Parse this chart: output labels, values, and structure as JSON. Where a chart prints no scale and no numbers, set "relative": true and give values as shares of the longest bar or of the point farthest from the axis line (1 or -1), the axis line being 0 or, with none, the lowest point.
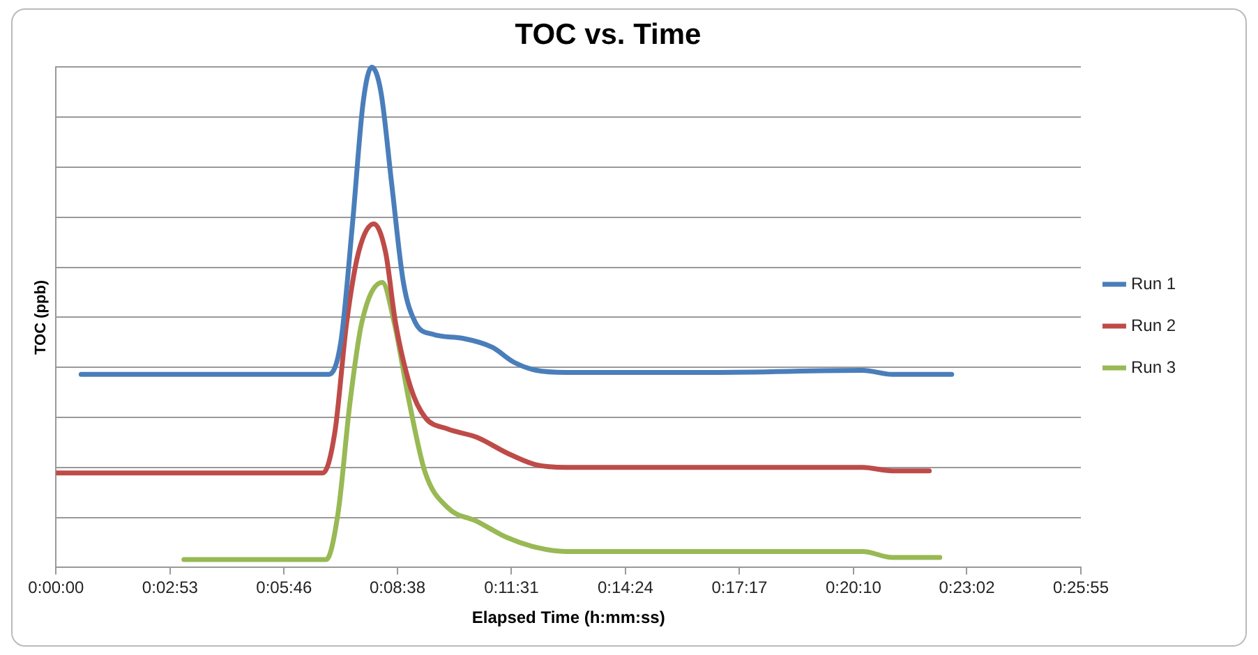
{
  "chart_data": {
    "type": "line",
    "title": "TOC vs. Time",
    "xlabel": "Elapsed Time (h:mm:ss)",
    "ylabel": "TOC (ppb)",
    "relative": true,
    "grid": "y",
    "legend": "right",
    "marker": "none",
    "line_style": "solid",
    "xlim": [
      0,
      1555
    ],
    "xticks": [
      {
        "value": 0,
        "label": "0:00:00"
      },
      {
        "value": 173,
        "label": "0:02:53"
      },
      {
        "value": 346,
        "label": "0:05:46"
      },
      {
        "value": 518,
        "label": "0:08:38"
      },
      {
        "value": 691,
        "label": "0:11:31"
      },
      {
        "value": 864,
        "label": "0:14:24"
      },
      {
        "value": 1037,
        "label": "0:17:17"
      },
      {
        "value": 1210,
        "label": "0:20:10"
      },
      {
        "value": 1382,
        "label": "0:23:02"
      },
      {
        "value": 1555,
        "label": "0:25:55"
      }
    ],
    "series": [
      {
        "name": "Run 1",
        "color": "#4a7ebb",
        "x": [
          38,
          414,
          432,
          450,
          466,
          479,
          493,
          509,
          527,
          545,
          572,
          617,
          662,
          695,
          729,
          774,
          999,
          1224,
          1269,
          1359
        ],
        "values": [
          0.386,
          0.386,
          0.45,
          0.69,
          0.93,
          1.0,
          0.95,
          0.77,
          0.57,
          0.49,
          0.466,
          0.458,
          0.44,
          0.41,
          0.394,
          0.39,
          0.39,
          0.394,
          0.386,
          0.386
        ]
      },
      {
        "name": "Run 2",
        "color": "#be4b48",
        "x": [
          0,
          405,
          423,
          441,
          459,
          482,
          500,
          515,
          538,
          560,
          594,
          639,
          684,
          729,
          774,
          999,
          1224,
          1269,
          1325
        ],
        "values": [
          0.189,
          0.189,
          0.27,
          0.49,
          0.63,
          0.687,
          0.63,
          0.49,
          0.36,
          0.3,
          0.277,
          0.26,
          0.229,
          0.205,
          0.2,
          0.2,
          0.2,
          0.193,
          0.193
        ]
      },
      {
        "name": "Run 3",
        "color": "#98b954",
        "x": [
          194,
          410,
          428,
          446,
          464,
          495,
          513,
          536,
          560,
          594,
          639,
          684,
          729,
          774,
          1224,
          1269,
          1341
        ],
        "values": [
          0.016,
          0.016,
          0.11,
          0.33,
          0.49,
          0.57,
          0.49,
          0.33,
          0.19,
          0.12,
          0.092,
          0.06,
          0.04,
          0.032,
          0.032,
          0.02,
          0.02
        ]
      }
    ]
  }
}
